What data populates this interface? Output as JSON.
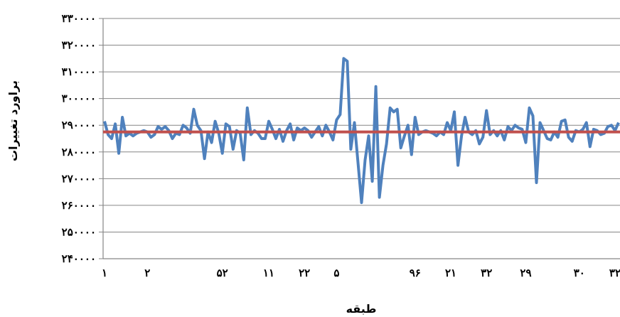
{
  "chart_data": {
    "type": "line",
    "xlabel": "طبقه",
    "ylabel": "براورد تغییرات",
    "ylim": [
      240000,
      330000
    ],
    "y_ticks": [
      "۲۴۰۰۰۰",
      "۲۵۰۰۰۰",
      "۲۶۰۰۰۰",
      "۲۷۰۰۰۰",
      "۲۸۰۰۰۰",
      "۲۹۰۰۰۰",
      "۳۰۰۰۰۰",
      "۳۱۰۰۰۰",
      "۳۲۰۰۰۰",
      "۳۳۰۰۰۰"
    ],
    "y_tick_values": [
      240000,
      250000,
      260000,
      270000,
      280000,
      290000,
      300000,
      310000,
      320000,
      330000
    ],
    "x_ticks": [
      {
        "x": 1,
        "label": "۱"
      },
      {
        "x": 13,
        "label": "۲"
      },
      {
        "x": 34,
        "label": "۵۲"
      },
      {
        "x": 47,
        "label": "۱۱"
      },
      {
        "x": 57,
        "label": "۲۲"
      },
      {
        "x": 66,
        "label": "۵"
      },
      {
        "x": 88,
        "label": "۹۶"
      },
      {
        "x": 98,
        "label": "۲۱"
      },
      {
        "x": 108,
        "label": "۳۲"
      },
      {
        "x": 119,
        "label": "۲۹"
      },
      {
        "x": 134,
        "label": "۳۰"
      },
      {
        "x": 144,
        "label": "۳۲"
      }
    ],
    "grid": true,
    "legend": "none",
    "series": [
      {
        "color": "#4F81BD",
        "values": [
          291500,
          286500,
          285000,
          290500,
          279500,
          293000,
          286000,
          287000,
          286000,
          287000,
          287500,
          288000,
          287500,
          285500,
          286500,
          289500,
          288500,
          289500,
          288000,
          285000,
          287000,
          286500,
          290000,
          289000,
          287000,
          296000,
          290000,
          288000,
          277500,
          287500,
          283500,
          291500,
          287000,
          279500,
          290500,
          289500,
          281000,
          288000,
          287000,
          277000,
          296500,
          286500,
          288000,
          287000,
          285000,
          285000,
          291500,
          288500,
          285000,
          288500,
          284000,
          288000,
          290500,
          284500,
          289000,
          288000,
          289000,
          288000,
          285500,
          287500,
          289500,
          286000,
          290000,
          287500,
          284500,
          292000,
          294000,
          315000,
          314000,
          281000,
          291000,
          276000,
          261000,
          277000,
          286000,
          269000,
          304500,
          263000,
          275000,
          283000,
          296500,
          295000,
          296000,
          281500,
          286000,
          290000,
          279000,
          293000,
          286500,
          287500,
          288000,
          287500,
          287000,
          286000,
          287500,
          286500,
          291000,
          288000,
          295000,
          275000,
          286000,
          293000,
          287500,
          286500,
          288000,
          283000,
          285500,
          295500,
          286500,
          288000,
          286000,
          288000,
          284500,
          289500,
          288000,
          290000,
          289000,
          288500,
          283500,
          296500,
          293500,
          268500,
          291000,
          288000,
          285000,
          284500,
          287500,
          285500,
          291500,
          292000,
          285500,
          284000,
          288000,
          287500,
          288500,
          291000,
          282000,
          288500,
          288000,
          286500,
          287000,
          289500,
          290000,
          288000,
          291000
        ]
      },
      {
        "color": "#C0504D",
        "values": [
          287500,
          287500
        ]
      }
    ]
  }
}
